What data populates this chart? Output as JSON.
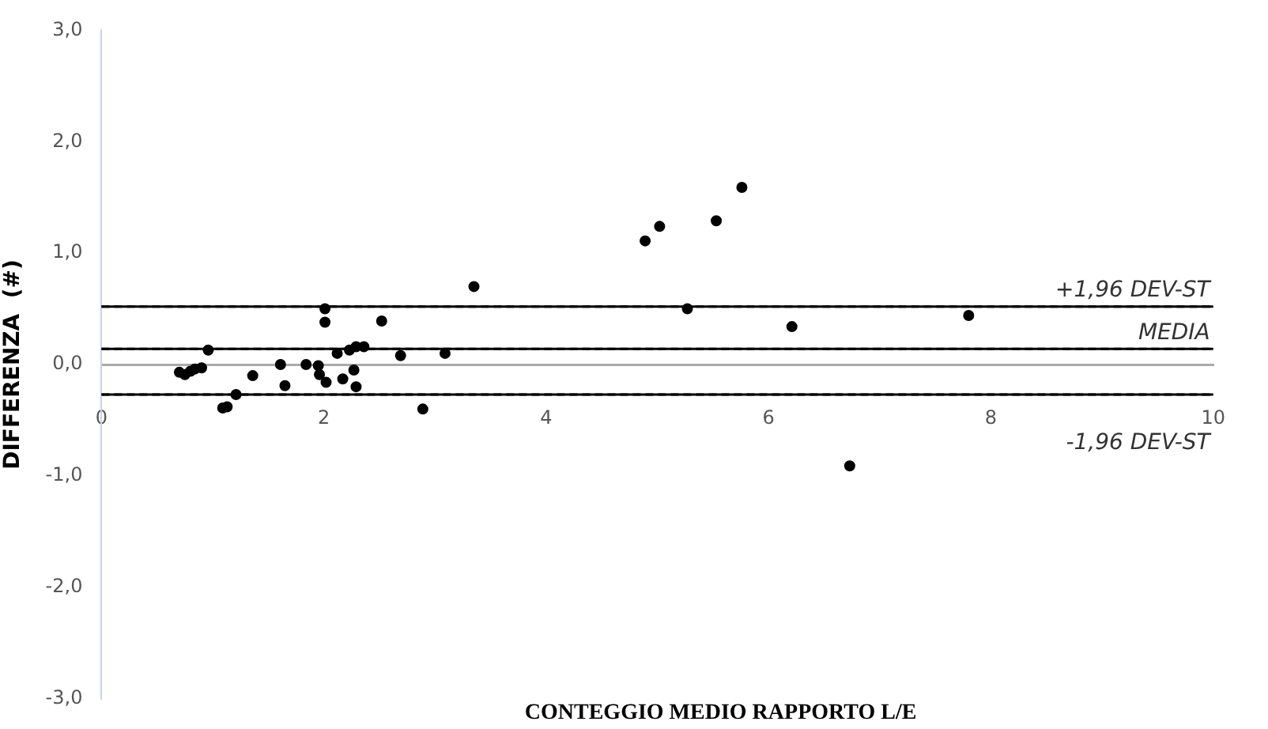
{
  "chart_data": {
    "type": "scatter",
    "xlabel": "CONTEGGIO MEDIO RAPPORTO L/E",
    "ylabel": "DIFFERENZA  (#)",
    "x": [
      0.7,
      0.75,
      0.8,
      0.84,
      0.9,
      0.96,
      1.09,
      1.13,
      1.21,
      1.36,
      1.61,
      1.65,
      1.84,
      1.95,
      1.96,
      2.01,
      2.01,
      2.02,
      2.12,
      2.17,
      2.23,
      2.27,
      2.29,
      2.29,
      2.36,
      2.52,
      2.69,
      2.89,
      3.09,
      3.35,
      4.89,
      5.02,
      5.27,
      5.53,
      5.76,
      6.21,
      6.73,
      7.8
    ],
    "series": [
      {
        "color": "#000000",
        "values": [
          -0.07,
          -0.09,
          -0.06,
          -0.04,
          -0.03,
          0.13,
          -0.39,
          -0.38,
          -0.27,
          -0.1,
          0.0,
          -0.19,
          0.0,
          -0.01,
          -0.09,
          0.5,
          0.38,
          -0.16,
          0.1,
          -0.13,
          0.13,
          -0.05,
          -0.2,
          0.16,
          0.16,
          0.39,
          0.08,
          -0.4,
          0.1,
          0.7,
          1.11,
          1.24,
          0.5,
          1.29,
          1.59,
          0.34,
          -0.91,
          0.44
        ]
      }
    ],
    "xlim": [
      0,
      10
    ],
    "xticks": [
      0,
      2,
      4,
      6,
      8,
      10
    ],
    "ylim": [
      -3,
      3
    ],
    "yticks": [
      {
        "value": -3,
        "label": "-3,0"
      },
      {
        "value": -2,
        "label": "-2,0"
      },
      {
        "value": -1,
        "label": "-1,0"
      },
      {
        "value": 0,
        "label": "0,0"
      },
      {
        "value": 1,
        "label": "1,0"
      },
      {
        "value": 2,
        "label": "2,0"
      },
      {
        "value": 3,
        "label": "3,0"
      }
    ],
    "ref_lines": [
      {
        "axis": "y",
        "value": 0.52,
        "label": "+1,96 DEV-ST",
        "color": "#000000",
        "line_style": "dashed"
      },
      {
        "axis": "y",
        "value": 0.14,
        "label": "MEDIA",
        "color": "#000000",
        "line_style": "dashed"
      },
      {
        "axis": "y",
        "value": -0.27,
        "label": "-1,96 DEV-ST",
        "color": "#000000",
        "line_style": "dashed"
      }
    ],
    "marker": "circle",
    "grid": false,
    "legend": false
  }
}
